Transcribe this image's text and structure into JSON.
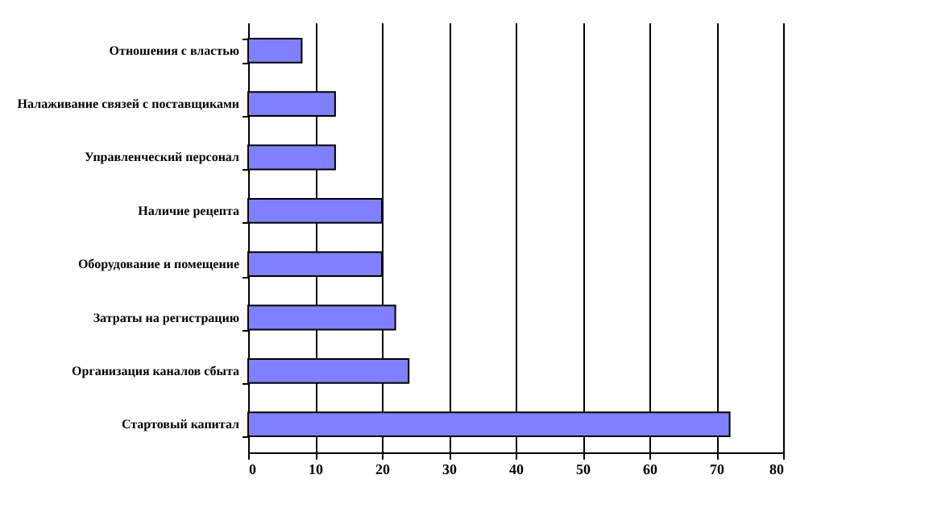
{
  "chart_data": {
    "type": "bar",
    "orientation": "horizontal",
    "categories": [
      "Отношения с властью",
      "Налаживание связей с поставщиками",
      "Управленческий персонал",
      "Наличие рецепта",
      "Оборудование и помещение",
      "Затраты на регистрацию",
      "Организация каналов сбыта",
      "Стартовый капитал"
    ],
    "values": [
      8,
      13,
      13,
      20,
      20,
      22,
      24,
      72
    ],
    "color": "#8080ff",
    "xlim": [
      0,
      80
    ],
    "xticks": [
      0,
      10,
      20,
      30,
      40,
      50,
      60,
      70,
      80
    ],
    "grid": "x"
  }
}
